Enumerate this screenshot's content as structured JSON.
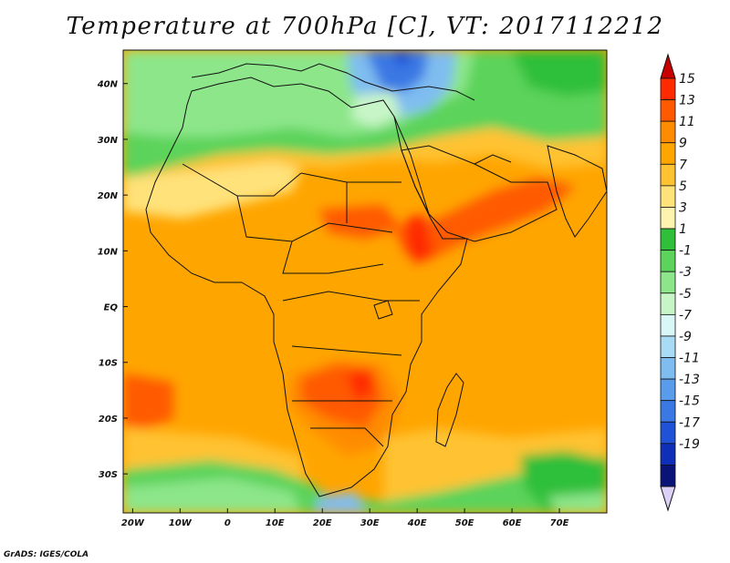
{
  "title": "Temperature at 700hPa [C], VT: 2017112212",
  "credit": "GrADS: IGES/COLA",
  "map": {
    "lon_range": [
      -22,
      80
    ],
    "lat_range": [
      -37,
      46
    ],
    "lon_ticks": [
      {
        "v": -20,
        "label": "20W"
      },
      {
        "v": -10,
        "label": "10W"
      },
      {
        "v": 0,
        "label": "0"
      },
      {
        "v": 10,
        "label": "10E"
      },
      {
        "v": 20,
        "label": "20E"
      },
      {
        "v": 30,
        "label": "30E"
      },
      {
        "v": 40,
        "label": "40E"
      },
      {
        "v": 50,
        "label": "50E"
      },
      {
        "v": 60,
        "label": "60E"
      },
      {
        "v": 70,
        "label": "70E"
      }
    ],
    "lat_ticks": [
      {
        "v": 40,
        "label": "40N"
      },
      {
        "v": 30,
        "label": "30N"
      },
      {
        "v": 20,
        "label": "20N"
      },
      {
        "v": 10,
        "label": "10N"
      },
      {
        "v": 0,
        "label": "EQ"
      },
      {
        "v": -10,
        "label": "10S"
      },
      {
        "v": -20,
        "label": "20S"
      },
      {
        "v": -30,
        "label": "30S"
      }
    ]
  },
  "colorbar": {
    "labels": [
      "15",
      "13",
      "11",
      "9",
      "7",
      "5",
      "3",
      "1",
      "-1",
      "-3",
      "-5",
      "-7",
      "-9",
      "-11",
      "-13",
      "-15",
      "-17",
      "-19"
    ],
    "colors": [
      "#ff2a00",
      "#ff5a00",
      "#ff8c00",
      "#ffa500",
      "#ffc233",
      "#ffe27a",
      "#fff3b0",
      "#2fbf3a",
      "#5cd35a",
      "#8de68a",
      "#c8f5c8",
      "#d9f7f7",
      "#a9dcf4",
      "#7fbdf0",
      "#5a9cec",
      "#3a78e4",
      "#1f52d6",
      "#0f2fb8",
      "#0a1478"
    ],
    "top_arrow_color": "#c80000",
    "bottom_arrow_color": "#dcd0f6"
  }
}
